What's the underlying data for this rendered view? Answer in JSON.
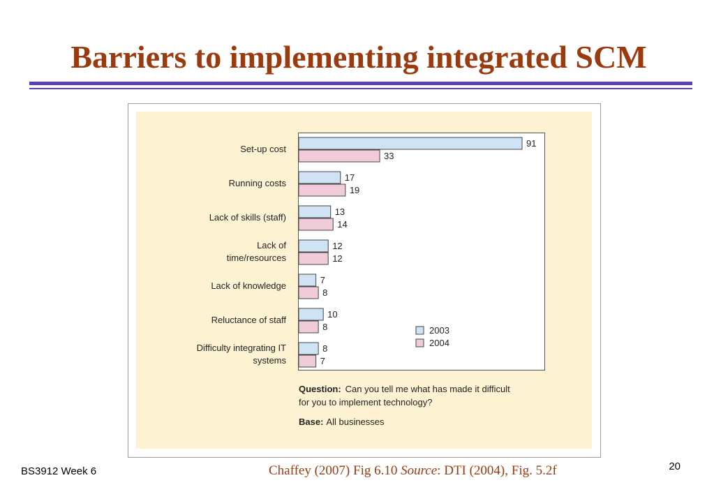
{
  "slide": {
    "title": "Barriers to implementing integrated SCM",
    "footer_left": "BS3912 Week 6",
    "citation": [
      "Chaffey (2007) Fig 6.10  ",
      "Source",
      ": DTI (2004), Fig. 5.2f"
    ],
    "page_number": "20"
  },
  "chart_data": {
    "type": "hbar",
    "categories": [
      "Set-up cost",
      "Running costs",
      "Lack of skills (staff)",
      "Lack of\ntime/resources",
      "Lack of knowledge",
      "Reluctance of staff",
      "Difficulty integrating IT\nsystems"
    ],
    "series": [
      {
        "name": "2003",
        "color": "#cfe3f5",
        "values": [
          91,
          17,
          13,
          12,
          7,
          10,
          8
        ]
      },
      {
        "name": "2004",
        "color": "#f0cbd9",
        "values": [
          33,
          19,
          14,
          12,
          8,
          8,
          7
        ]
      }
    ],
    "question_label": "Question:",
    "question_lines": [
      "Can you tell me what has made it difficult",
      "for you to implement technology?"
    ],
    "base_label": "Base:",
    "base_text": "All businesses"
  }
}
